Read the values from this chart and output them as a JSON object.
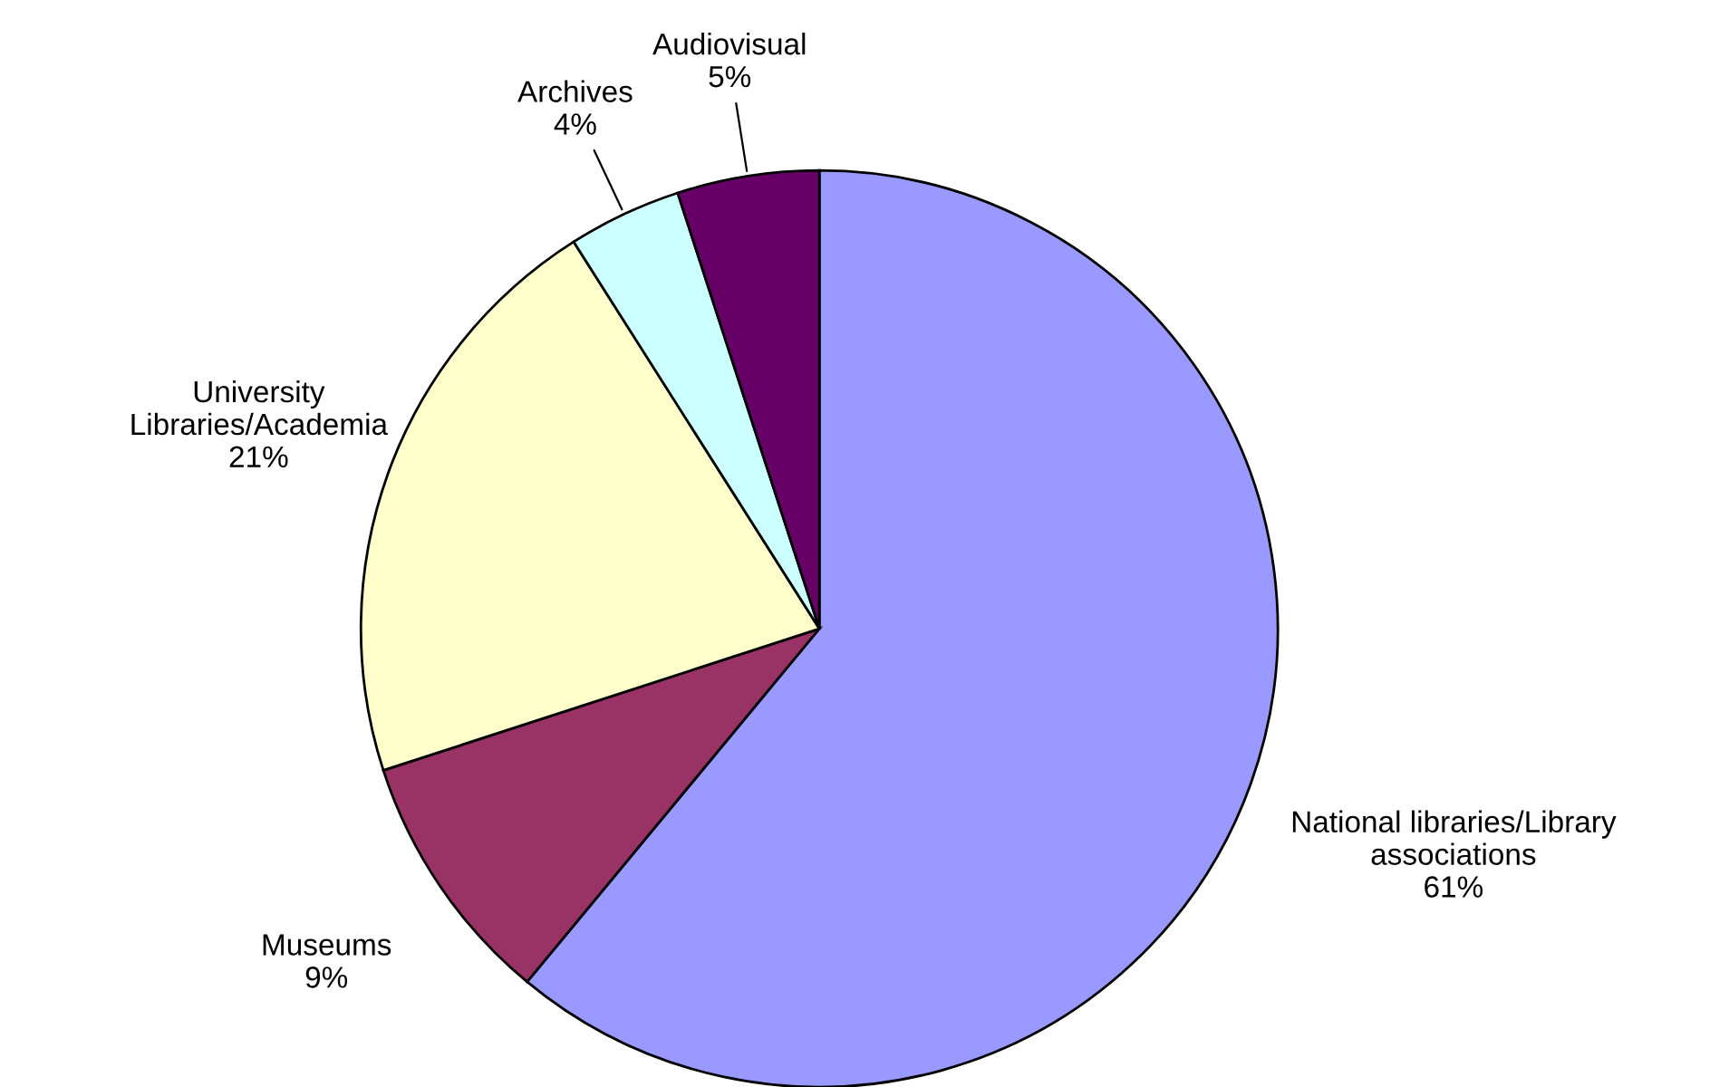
{
  "chart_data": {
    "type": "pie",
    "categories": [
      "National libraries/Library\nassociations",
      "Museums",
      "University\nLibraries/Academia",
      "Archives",
      "Audiovisual"
    ],
    "values": [
      61,
      9,
      21,
      4,
      5
    ],
    "colors": [
      "#9999ff",
      "#993366",
      "#ffffcc",
      "#ccffff",
      "#660066"
    ],
    "value_labels": [
      "61%",
      "9%",
      "21%",
      "4%",
      "5%"
    ],
    "legend": false
  }
}
